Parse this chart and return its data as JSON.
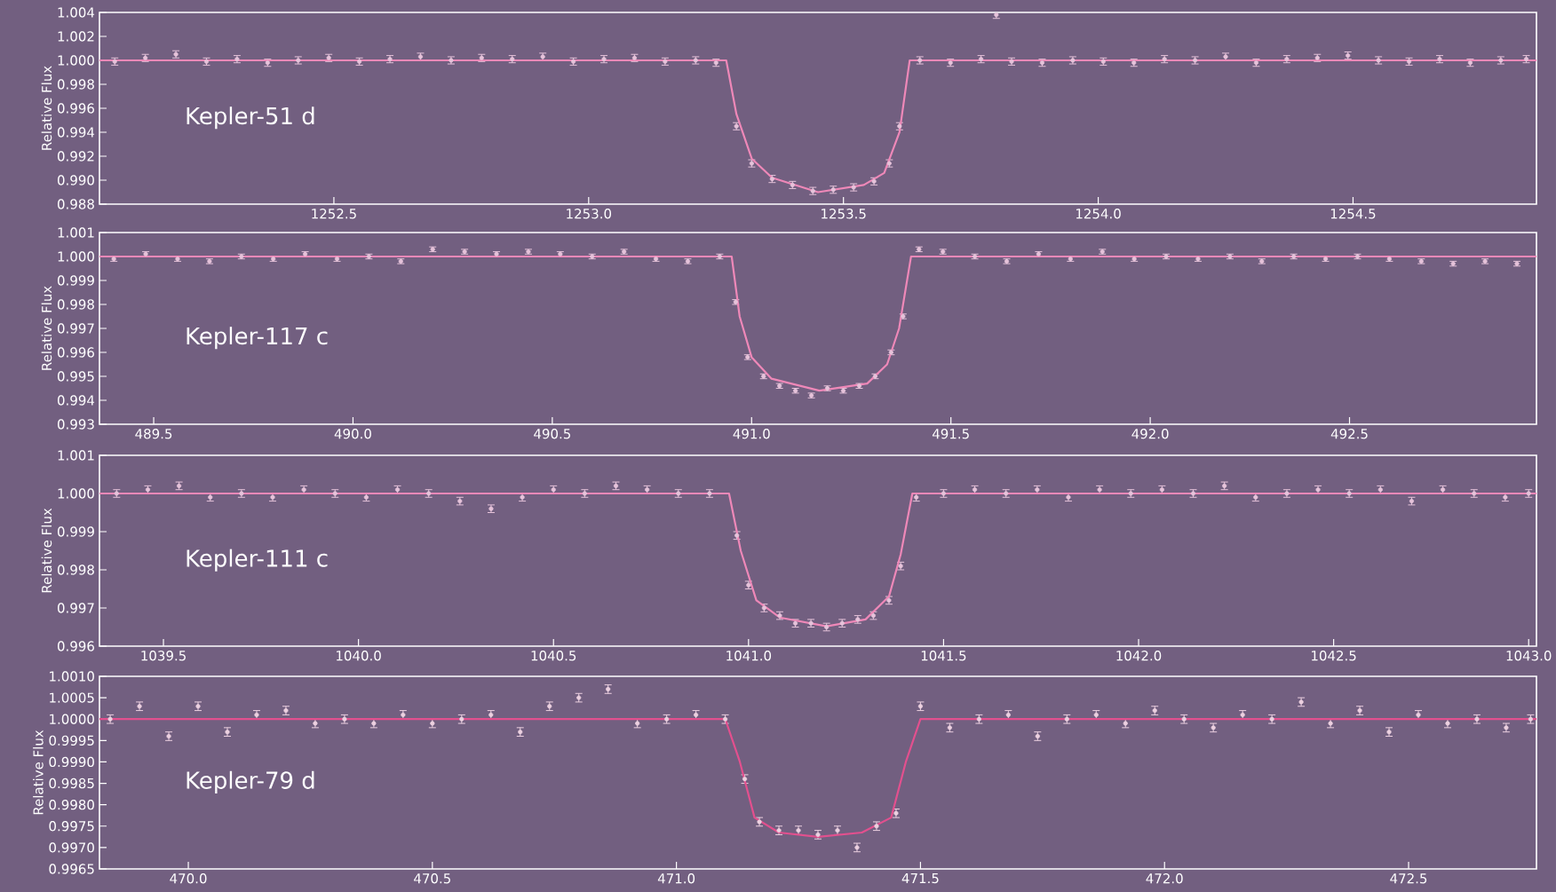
{
  "chart_data": [
    {
      "type": "scatter",
      "ylabel": "Relative Flux",
      "annotations": [
        "Kepler-51 d"
      ],
      "xlim": [
        1252.04,
        1254.86
      ],
      "ylim": [
        0.988,
        1.004
      ],
      "xticks": [
        {
          "value": 1252.5,
          "label": "1252.5"
        },
        {
          "value": 1253.0,
          "label": "1253.0"
        },
        {
          "value": 1253.5,
          "label": "1253.5"
        },
        {
          "value": 1254.0,
          "label": "1254.0"
        },
        {
          "value": 1254.5,
          "label": "1254.5"
        }
      ],
      "yticks": [
        {
          "value": 0.988,
          "label": "0.988"
        },
        {
          "value": 0.99,
          "label": "0.990"
        },
        {
          "value": 0.992,
          "label": "0.992"
        },
        {
          "value": 0.994,
          "label": "0.994"
        },
        {
          "value": 0.996,
          "label": "0.996"
        },
        {
          "value": 0.998,
          "label": "0.998"
        },
        {
          "value": 1.0,
          "label": "1.000"
        },
        {
          "value": 1.002,
          "label": "1.002"
        },
        {
          "value": 1.004,
          "label": "1.004"
        }
      ],
      "series": [
        {
          "type": "scatter",
          "marker": "circle",
          "color": "#e6c3da",
          "x": [
            1252.07,
            1252.13,
            1252.19,
            1252.25,
            1252.31,
            1252.37,
            1252.43,
            1252.49,
            1252.55,
            1252.61,
            1252.67,
            1252.73,
            1252.79,
            1252.85,
            1252.91,
            1252.97,
            1253.03,
            1253.09,
            1253.15,
            1253.21,
            1253.25,
            1253.29,
            1253.32,
            1253.36,
            1253.4,
            1253.44,
            1253.48,
            1253.52,
            1253.56,
            1253.59,
            1253.61,
            1253.65,
            1253.71,
            1253.77,
            1253.8,
            1253.83,
            1253.89,
            1253.95,
            1254.01,
            1254.07,
            1254.13,
            1254.19,
            1254.25,
            1254.31,
            1254.37,
            1254.43,
            1254.49,
            1254.55,
            1254.61,
            1254.67,
            1254.73,
            1254.79,
            1254.84
          ],
          "values": [
            0.9999,
            1.0002,
            1.0005,
            0.9999,
            1.0001,
            0.9998,
            1.0,
            1.0002,
            0.9999,
            1.0001,
            1.0003,
            1.0,
            1.0002,
            1.0001,
            1.0003,
            0.9999,
            1.0001,
            1.0002,
            0.9999,
            1.0,
            0.9998,
            0.9945,
            0.9914,
            0.9901,
            0.9896,
            0.9891,
            0.9892,
            0.9894,
            0.9899,
            0.9914,
            0.9945,
            1.0,
            0.9998,
            1.0001,
            1.0038,
            0.9999,
            0.9998,
            1.0,
            0.9999,
            0.9998,
            1.0001,
            1.0,
            1.0003,
            0.9998,
            1.0001,
            1.0002,
            1.0004,
            1.0,
            0.9999,
            1.0001,
            0.9998,
            1.0,
            1.0001
          ],
          "errors": [
            0.0003,
            0.0003,
            0.0003,
            0.0003,
            0.0003,
            0.0003,
            0.0003,
            0.0003,
            0.0003,
            0.0003,
            0.0003,
            0.0003,
            0.0003,
            0.0003,
            0.0003,
            0.0003,
            0.0003,
            0.0003,
            0.0003,
            0.0003,
            0.0003,
            0.0003,
            0.0003,
            0.0003,
            0.0003,
            0.0003,
            0.0003,
            0.0003,
            0.0003,
            0.0003,
            0.0003,
            0.0003,
            0.0003,
            0.0003,
            0.0003,
            0.0003,
            0.0003,
            0.0003,
            0.0003,
            0.0003,
            0.0003,
            0.0003,
            0.0003,
            0.0003,
            0.0003,
            0.0003,
            0.0003,
            0.0003,
            0.0003,
            0.0003,
            0.0003,
            0.0003,
            0.0003
          ]
        },
        {
          "type": "line",
          "marker": "none",
          "color": "#ee88b8",
          "x": [
            1252.04,
            1253.27,
            1253.29,
            1253.32,
            1253.36,
            1253.45,
            1253.54,
            1253.58,
            1253.61,
            1253.63,
            1254.86
          ],
          "values": [
            1.0,
            1.0,
            0.9955,
            0.9918,
            0.9902,
            0.989,
            0.9896,
            0.9906,
            0.994,
            1.0,
            1.0
          ]
        }
      ]
    },
    {
      "type": "scatter",
      "ylabel": "Relative Flux",
      "annotations": [
        "Kepler-117 c"
      ],
      "xlim": [
        489.364,
        492.969
      ],
      "ylim": [
        0.993,
        1.001
      ],
      "xticks": [
        {
          "value": 489.5,
          "label": "489.5"
        },
        {
          "value": 490.0,
          "label": "490.0"
        },
        {
          "value": 490.5,
          "label": "490.5"
        },
        {
          "value": 491.0,
          "label": "491.0"
        },
        {
          "value": 491.5,
          "label": "491.5"
        },
        {
          "value": 492.0,
          "label": "492.0"
        },
        {
          "value": 492.5,
          "label": "492.5"
        }
      ],
      "yticks": [
        {
          "value": 0.993,
          "label": "0.993"
        },
        {
          "value": 0.994,
          "label": "0.994"
        },
        {
          "value": 0.995,
          "label": "0.995"
        },
        {
          "value": 0.996,
          "label": "0.996"
        },
        {
          "value": 0.997,
          "label": "0.997"
        },
        {
          "value": 0.998,
          "label": "0.998"
        },
        {
          "value": 0.999,
          "label": "0.999"
        },
        {
          "value": 1.0,
          "label": "1.000"
        },
        {
          "value": 1.001,
          "label": "1.001"
        }
      ],
      "series": [
        {
          "type": "scatter",
          "marker": "circle",
          "color": "#e6c3da",
          "x": [
            489.4,
            489.48,
            489.56,
            489.64,
            489.72,
            489.8,
            489.88,
            489.96,
            490.04,
            490.12,
            490.2,
            490.28,
            490.36,
            490.44,
            490.52,
            490.6,
            490.68,
            490.76,
            490.84,
            490.92,
            490.96,
            490.99,
            491.03,
            491.07,
            491.11,
            491.15,
            491.19,
            491.23,
            491.27,
            491.31,
            491.35,
            491.38,
            491.42,
            491.48,
            491.56,
            491.64,
            491.72,
            491.8,
            491.88,
            491.96,
            492.04,
            492.12,
            492.2,
            492.28,
            492.36,
            492.44,
            492.52,
            492.6,
            492.68,
            492.76,
            492.84,
            492.92
          ],
          "values": [
            0.9999,
            1.0001,
            0.9999,
            0.9998,
            1.0,
            0.9999,
            1.0001,
            0.9999,
            1.0,
            0.9998,
            1.0003,
            1.0002,
            1.0001,
            1.0002,
            1.0001,
            1.0,
            1.0002,
            0.9999,
            0.9998,
            1.0,
            0.9981,
            0.9958,
            0.995,
            0.9946,
            0.9944,
            0.9942,
            0.9945,
            0.9944,
            0.9946,
            0.995,
            0.996,
            0.9975,
            1.0003,
            1.0002,
            1.0,
            0.9998,
            1.0001,
            0.9999,
            1.0002,
            0.9999,
            1.0,
            0.9999,
            1.0,
            0.9998,
            1.0,
            0.9999,
            1.0,
            0.9999,
            0.9998,
            0.9997,
            0.9998,
            0.9997
          ],
          "errors": [
            0.0001,
            0.0001,
            0.0001,
            0.0001,
            0.0001,
            0.0001,
            0.0001,
            0.0001,
            0.0001,
            0.0001,
            0.0001,
            0.0001,
            0.0001,
            0.0001,
            0.0001,
            0.0001,
            0.0001,
            0.0001,
            0.0001,
            0.0001,
            0.0001,
            0.0001,
            0.0001,
            0.0001,
            0.0001,
            0.0001,
            0.0001,
            0.0001,
            0.0001,
            0.0001,
            0.0001,
            0.0001,
            0.0001,
            0.0001,
            0.0001,
            0.0001,
            0.0001,
            0.0001,
            0.0001,
            0.0001,
            0.0001,
            0.0001,
            0.0001,
            0.0001,
            0.0001,
            0.0001,
            0.0001,
            0.0001,
            0.0001,
            0.0001,
            0.0001,
            0.0001
          ]
        },
        {
          "type": "line",
          "marker": "none",
          "color": "#ee88b8",
          "x": [
            489.364,
            490.95,
            490.97,
            491.0,
            491.05,
            491.17,
            491.29,
            491.34,
            491.37,
            491.4,
            492.969
          ],
          "values": [
            1.0,
            1.0,
            0.9975,
            0.9958,
            0.9949,
            0.9944,
            0.9947,
            0.9955,
            0.997,
            1.0,
            1.0
          ]
        }
      ]
    },
    {
      "type": "scatter",
      "ylabel": "Relative Flux",
      "annotations": [
        "Kepler-111 c"
      ],
      "xlim": [
        1039.336,
        1043.02
      ],
      "ylim": [
        0.996,
        1.001
      ],
      "xticks": [
        {
          "value": 1039.5,
          "label": "1039.5"
        },
        {
          "value": 1040.0,
          "label": "1040.0"
        },
        {
          "value": 1040.5,
          "label": "1040.5"
        },
        {
          "value": 1041.0,
          "label": "1041.0"
        },
        {
          "value": 1041.5,
          "label": "1041.5"
        },
        {
          "value": 1042.0,
          "label": "1042.0"
        },
        {
          "value": 1042.5,
          "label": "1042.5"
        },
        {
          "value": 1043.0,
          "label": "1043.0"
        }
      ],
      "yticks": [
        {
          "value": 0.996,
          "label": "0.996"
        },
        {
          "value": 0.997,
          "label": "0.997"
        },
        {
          "value": 0.998,
          "label": "0.998"
        },
        {
          "value": 0.999,
          "label": "0.999"
        },
        {
          "value": 1.0,
          "label": "1.000"
        },
        {
          "value": 1.001,
          "label": "1.001"
        }
      ],
      "series": [
        {
          "type": "scatter",
          "marker": "circle",
          "color": "#e6c3da",
          "x": [
            1039.38,
            1039.46,
            1039.54,
            1039.62,
            1039.7,
            1039.78,
            1039.86,
            1039.94,
            1040.02,
            1040.1,
            1040.18,
            1040.26,
            1040.34,
            1040.42,
            1040.5,
            1040.58,
            1040.66,
            1040.74,
            1040.82,
            1040.9,
            1040.97,
            1041.0,
            1041.04,
            1041.08,
            1041.12,
            1041.16,
            1041.2,
            1041.24,
            1041.28,
            1041.32,
            1041.36,
            1041.39,
            1041.43,
            1041.5,
            1041.58,
            1041.66,
            1041.74,
            1041.82,
            1041.9,
            1041.98,
            1042.06,
            1042.14,
            1042.22,
            1042.3,
            1042.38,
            1042.46,
            1042.54,
            1042.62,
            1042.7,
            1042.78,
            1042.86,
            1042.94,
            1043.0
          ],
          "values": [
            1.0,
            1.0001,
            1.0002,
            0.9999,
            1.0,
            0.9999,
            1.0001,
            1.0,
            0.9999,
            1.0001,
            1.0,
            0.9998,
            0.9996,
            0.9999,
            1.0001,
            1.0,
            1.0002,
            1.0001,
            1.0,
            1.0,
            0.9989,
            0.9976,
            0.997,
            0.9968,
            0.9966,
            0.9966,
            0.9965,
            0.9966,
            0.9967,
            0.9968,
            0.9972,
            0.9981,
            0.9999,
            1.0,
            1.0001,
            1.0,
            1.0001,
            0.9999,
            1.0001,
            1.0,
            1.0001,
            1.0,
            1.0002,
            0.9999,
            1.0,
            1.0001,
            1.0,
            1.0001,
            0.9998,
            1.0001,
            1.0,
            0.9999,
            1.0
          ],
          "errors": [
            0.0001,
            0.0001,
            0.0001,
            0.0001,
            0.0001,
            0.0001,
            0.0001,
            0.0001,
            0.0001,
            0.0001,
            0.0001,
            0.0001,
            0.0001,
            0.0001,
            0.0001,
            0.0001,
            0.0001,
            0.0001,
            0.0001,
            0.0001,
            0.0001,
            0.0001,
            0.0001,
            0.0001,
            0.0001,
            0.0001,
            0.0001,
            0.0001,
            0.0001,
            0.0001,
            0.0001,
            0.0001,
            0.0001,
            0.0001,
            0.0001,
            0.0001,
            0.0001,
            0.0001,
            0.0001,
            0.0001,
            0.0001,
            0.0001,
            0.0001,
            0.0001,
            0.0001,
            0.0001,
            0.0001,
            0.0001,
            0.0001,
            0.0001,
            0.0001,
            0.0001,
            0.0001
          ]
        },
        {
          "type": "line",
          "marker": "none",
          "color": "#ee88b8",
          "x": [
            1039.336,
            1040.95,
            1040.98,
            1041.02,
            1041.08,
            1041.2,
            1041.3,
            1041.36,
            1041.39,
            1041.42,
            1043.02
          ],
          "values": [
            1.0,
            1.0,
            0.9985,
            0.9972,
            0.99675,
            0.99652,
            0.9967,
            0.9973,
            0.9984,
            1.0,
            1.0
          ]
        }
      ]
    },
    {
      "type": "scatter",
      "ylabel": "Relative Flux",
      "annotations": [
        "Kepler-79 d"
      ],
      "xlim": [
        469.818,
        472.762
      ],
      "ylim": [
        0.9965,
        1.001
      ],
      "xticks": [
        {
          "value": 470.0,
          "label": "470.0"
        },
        {
          "value": 470.5,
          "label": "470.5"
        },
        {
          "value": 471.0,
          "label": "471.0"
        },
        {
          "value": 471.5,
          "label": "471.5"
        },
        {
          "value": 472.0,
          "label": "472.0"
        },
        {
          "value": 472.5,
          "label": "472.5"
        }
      ],
      "yticks": [
        {
          "value": 0.9965,
          "label": "0.9965"
        },
        {
          "value": 0.997,
          "label": "0.9970"
        },
        {
          "value": 0.9975,
          "label": "0.9975"
        },
        {
          "value": 0.998,
          "label": "0.9980"
        },
        {
          "value": 0.9985,
          "label": "0.9985"
        },
        {
          "value": 0.999,
          "label": "0.9990"
        },
        {
          "value": 0.9995,
          "label": "0.9995"
        },
        {
          "value": 1.0,
          "label": "1.0000"
        },
        {
          "value": 1.0005,
          "label": "1.0005"
        },
        {
          "value": 1.001,
          "label": "1.0010"
        }
      ],
      "series": [
        {
          "type": "scatter",
          "marker": "circle",
          "color": "#ecd0e0",
          "x": [
            469.84,
            469.9,
            469.96,
            470.02,
            470.08,
            470.14,
            470.2,
            470.26,
            470.32,
            470.38,
            470.44,
            470.5,
            470.56,
            470.62,
            470.68,
            470.74,
            470.8,
            470.86,
            470.92,
            470.98,
            471.04,
            471.1,
            471.14,
            471.17,
            471.21,
            471.25,
            471.29,
            471.33,
            471.37,
            471.41,
            471.45,
            471.5,
            471.56,
            471.62,
            471.68,
            471.74,
            471.8,
            471.86,
            471.92,
            471.98,
            472.04,
            472.1,
            472.16,
            472.22,
            472.28,
            472.34,
            472.4,
            472.46,
            472.52,
            472.58,
            472.64,
            472.7,
            472.75
          ],
          "values": [
            1.0,
            1.0003,
            0.9996,
            1.0003,
            0.9997,
            1.0001,
            1.0002,
            0.9999,
            1.0,
            0.9999,
            1.0001,
            0.9999,
            1.0,
            1.0001,
            0.9997,
            1.0003,
            1.0005,
            1.0007,
            0.9999,
            1.0,
            1.0001,
            1.0,
            0.9986,
            0.9976,
            0.9974,
            0.9974,
            0.9973,
            0.9974,
            0.997,
            0.9975,
            0.9978,
            1.0003,
            0.9998,
            1.0,
            1.0001,
            0.9996,
            1.0,
            1.0001,
            0.9999,
            1.0002,
            1.0,
            0.9998,
            1.0001,
            1.0,
            1.0004,
            0.9999,
            1.0002,
            0.9997,
            1.0001,
            0.9999,
            1.0,
            0.9998,
            1.0
          ],
          "errors": [
            0.0001,
            0.0001,
            0.0001,
            0.0001,
            0.0001,
            0.0001,
            0.0001,
            0.0001,
            0.0001,
            0.0001,
            0.0001,
            0.0001,
            0.0001,
            0.0001,
            0.0001,
            0.0001,
            0.0001,
            0.0001,
            0.0001,
            0.0001,
            0.0001,
            0.0001,
            0.0001,
            0.0001,
            0.0001,
            0.0001,
            0.0001,
            0.0001,
            0.0001,
            0.0001,
            0.0001,
            0.0001,
            0.0001,
            0.0001,
            0.0001,
            0.0001,
            0.0001,
            0.0001,
            0.0001,
            0.0001,
            0.0001,
            0.0001,
            0.0001,
            0.0001,
            0.0001,
            0.0001,
            0.0001,
            0.0001,
            0.0001,
            0.0001,
            0.0001,
            0.0001,
            0.0001
          ]
        },
        {
          "type": "line",
          "marker": "none",
          "color": "#e2508e",
          "x": [
            469.818,
            471.1,
            471.13,
            471.16,
            471.21,
            471.29,
            471.38,
            471.44,
            471.47,
            471.5,
            472.762
          ],
          "values": [
            1.0,
            1.0,
            0.999,
            0.9977,
            0.99735,
            0.99725,
            0.99735,
            0.9977,
            0.999,
            1.0,
            1.0
          ]
        }
      ]
    }
  ]
}
